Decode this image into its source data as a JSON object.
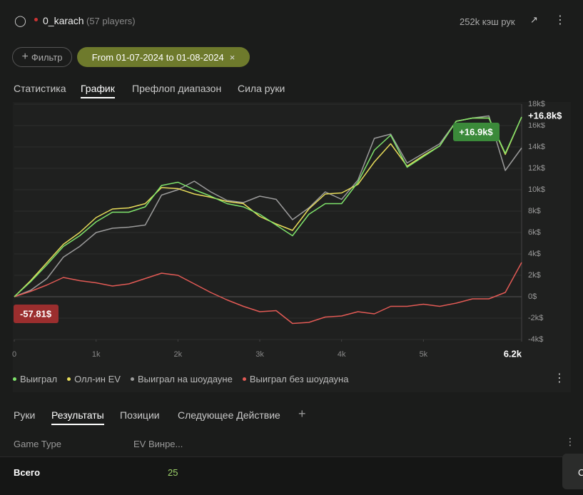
{
  "header": {
    "player": "0_karach",
    "players": "(57 players)",
    "hands": "252k кэш рук"
  },
  "filters": {
    "filter_button": "Фильтр",
    "date_chip": "From 01-07-2024 to 01-08-2024"
  },
  "tabs": [
    "Статистика",
    "График",
    "Префлоп диапазон",
    "Сила руки"
  ],
  "active_tab": 1,
  "chart_data": {
    "type": "line",
    "x": [
      0,
      200,
      400,
      600,
      800,
      1000,
      1200,
      1400,
      1600,
      1800,
      2000,
      2200,
      2400,
      2600,
      2800,
      3000,
      3200,
      3400,
      3600,
      3800,
      4000,
      4200,
      4400,
      4600,
      4800,
      5000,
      5200,
      5400,
      5600,
      5800,
      6000,
      6200
    ],
    "xlim": [
      0,
      6200
    ],
    "xticks": [
      0,
      {
        "value": 1000,
        "label": "1k"
      },
      {
        "value": 2000,
        "label": "2k"
      },
      {
        "value": 3000,
        "label": "3k"
      },
      {
        "value": 4000,
        "label": "4k"
      },
      {
        "value": 5000,
        "label": "5k"
      },
      {
        "value": 6200,
        "label": "6.2k"
      }
    ],
    "ylim": [
      -4000,
      18000
    ],
    "yticks": [
      {
        "value": -4000,
        "label": "-4k$"
      },
      {
        "value": -2000,
        "label": "-2k$"
      },
      {
        "value": 0,
        "label": "0$"
      },
      {
        "value": 2000,
        "label": "2k$"
      },
      {
        "value": 4000,
        "label": "4k$"
      },
      {
        "value": 6000,
        "label": "6k$"
      },
      {
        "value": 8000,
        "label": "8k$"
      },
      {
        "value": 10000,
        "label": "10k$"
      },
      {
        "value": 12000,
        "label": "12k$"
      },
      {
        "value": 14000,
        "label": "14k$"
      },
      {
        "value": 16000,
        "label": "16k$"
      },
      {
        "value": 18000,
        "label": "18k$"
      }
    ],
    "grid": true,
    "series": [
      {
        "name": "Выиграл на шоудауне",
        "color": "#9b9b9b",
        "values": [
          0,
          600,
          1700,
          3700,
          4700,
          6000,
          6400,
          6500,
          6700,
          9500,
          10000,
          10800,
          9800,
          9000,
          8800,
          9400,
          9100,
          7200,
          8300,
          9800,
          9100,
          10900,
          14800,
          15200,
          12500,
          13400,
          14300,
          16400,
          16700,
          16900,
          11800,
          13900
        ]
      },
      {
        "name": "Выиграл без шоудауна",
        "color": "#e25a55",
        "values": [
          0,
          500,
          1100,
          1800,
          1500,
          1300,
          1000,
          1200,
          1700,
          2200,
          2000,
          1200,
          400,
          -300,
          -900,
          -1400,
          -1300,
          -2500,
          -2400,
          -1900,
          -1800,
          -1400,
          -1600,
          -900,
          -900,
          -700,
          -900,
          -600,
          -200,
          -200,
          400,
          3200
        ]
      },
      {
        "name": "Олл-ин EV",
        "color": "#e8dd5a",
        "values": [
          0,
          1500,
          3200,
          4900,
          6000,
          7400,
          8200,
          8300,
          8700,
          10200,
          10100,
          9600,
          9300,
          8900,
          8700,
          7500,
          6800,
          6200,
          8200,
          9600,
          9700,
          10500,
          12600,
          14300,
          12200,
          13200,
          14100,
          16400,
          16700,
          16700,
          13300,
          16800
        ]
      },
      {
        "name": "Выиграл",
        "color": "#7fe36b",
        "values": [
          0,
          1400,
          3000,
          4700,
          5700,
          7000,
          7900,
          7900,
          8400,
          10400,
          10700,
          10000,
          9400,
          8700,
          8400,
          7700,
          6700,
          5700,
          7700,
          8700,
          8700,
          10700,
          13700,
          15100,
          12100,
          13100,
          14100,
          16400,
          16700,
          16700,
          13400,
          16800
        ]
      }
    ],
    "legend_order": [
      3,
      2,
      0,
      1
    ],
    "annotations": {
      "end_total": "+16.8k$",
      "start_total": "-57.81$",
      "tooltip": "+16.9k$"
    }
  },
  "bottom_tabs": [
    "Руки",
    "Результаты",
    "Позиции",
    "Следующее Действие"
  ],
  "active_bottom_tab": 1,
  "table": {
    "columns": [
      "Game Type",
      "EV Винре..."
    ],
    "rows": [
      [
        "Всего",
        "25"
      ]
    ]
  },
  "corner_button": "C"
}
